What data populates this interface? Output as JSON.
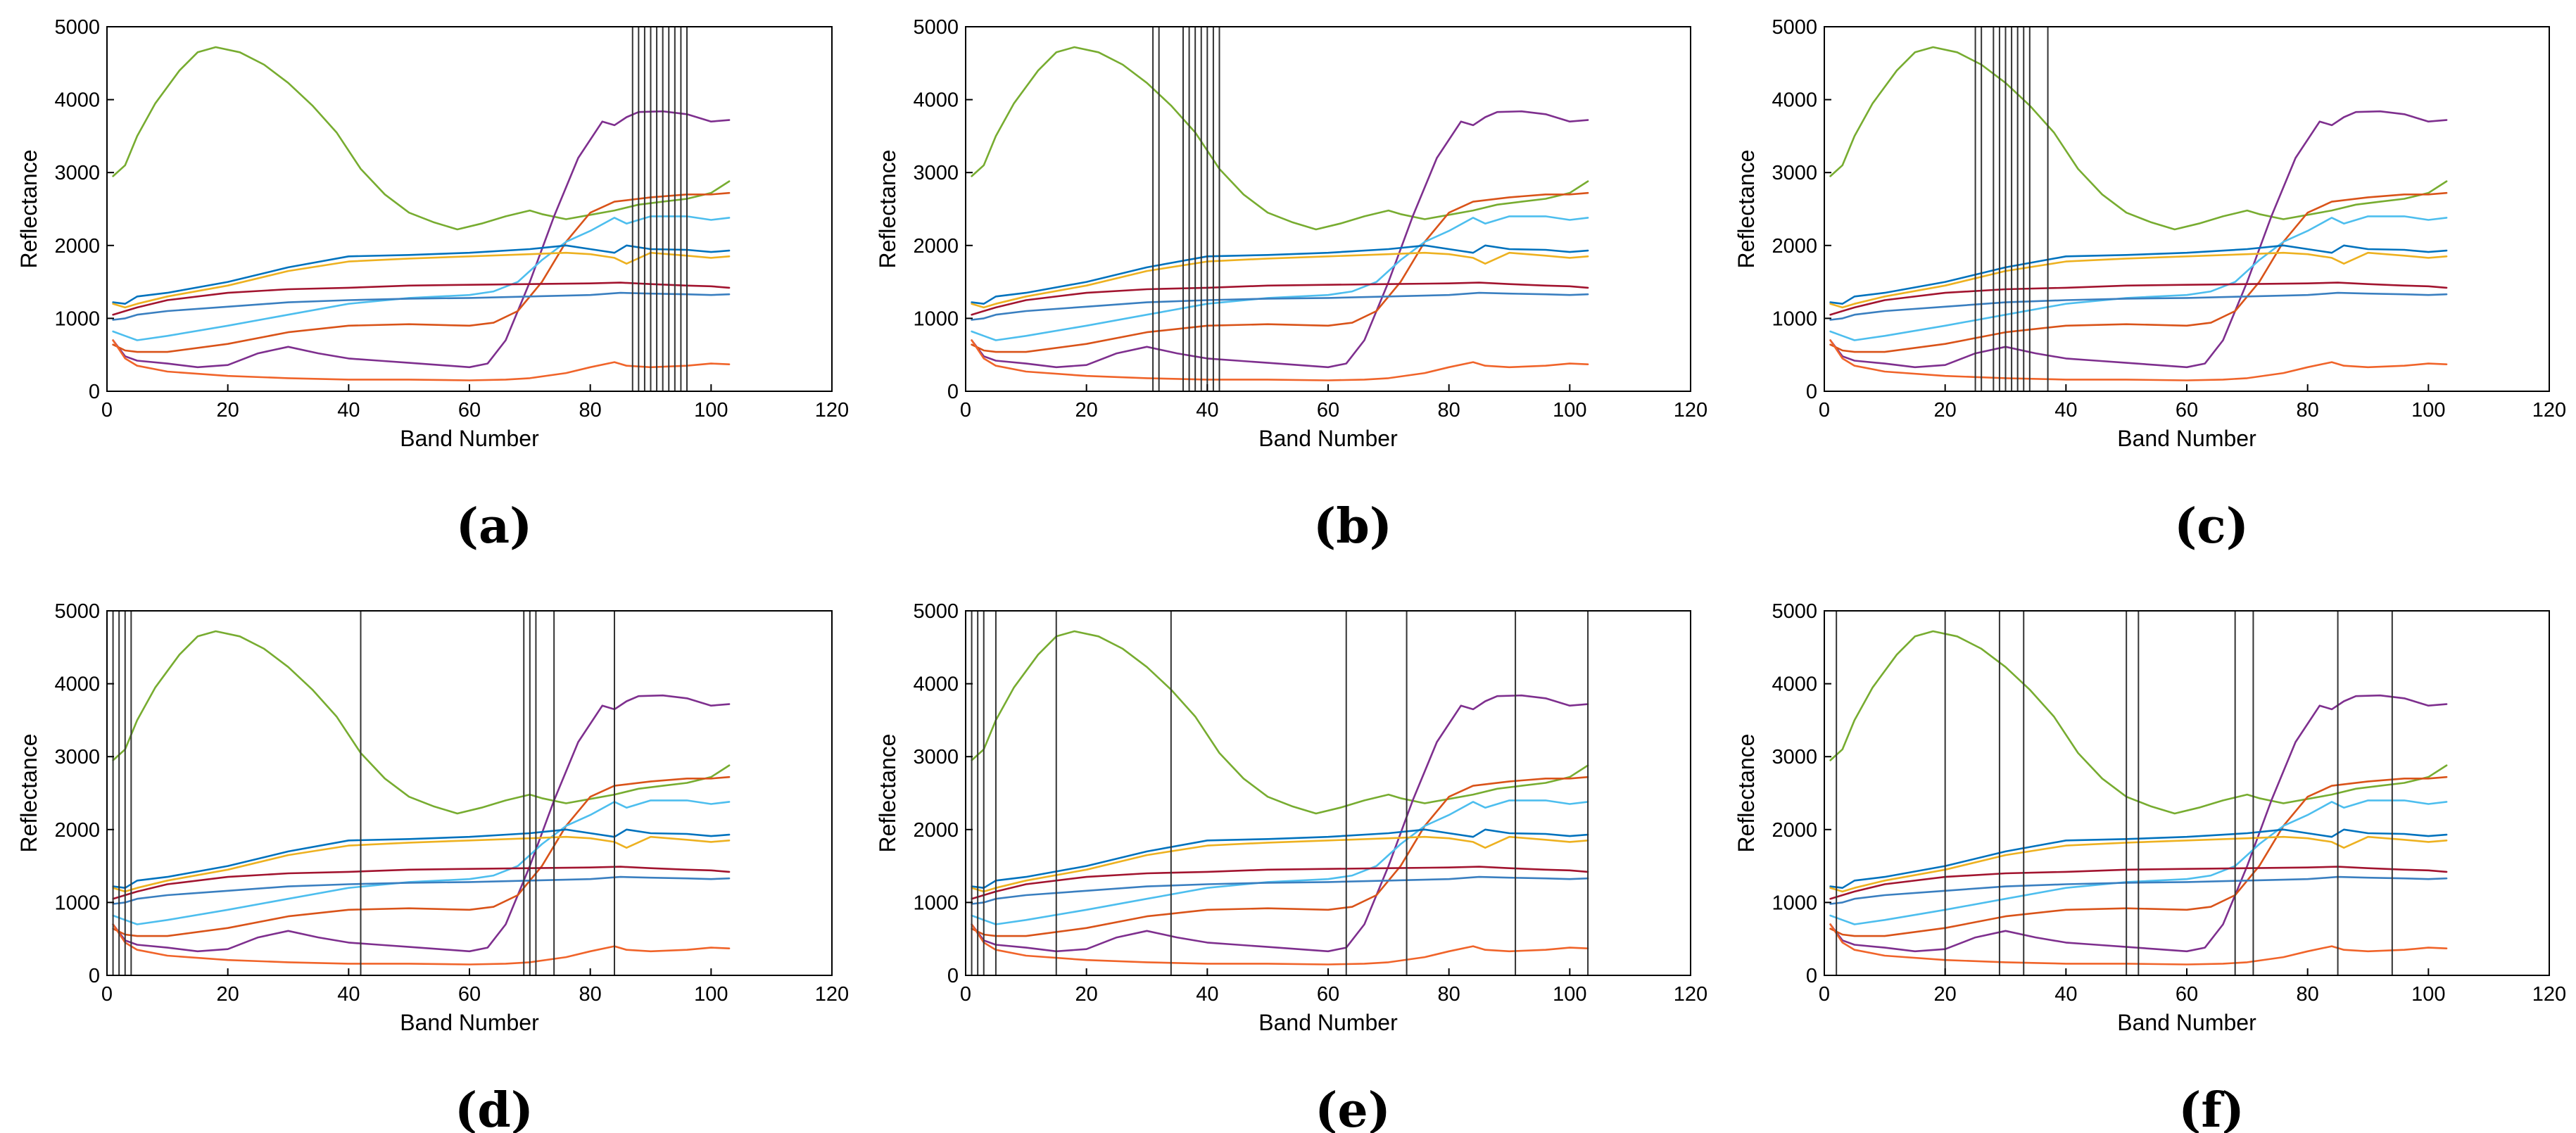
{
  "chart_data": {
    "type": "line",
    "xlabel": "Band Number",
    "ylabel": "Reflectance",
    "xlim": [
      0,
      120
    ],
    "ylim": [
      0,
      5000
    ],
    "xticks": [
      0,
      20,
      40,
      60,
      80,
      100,
      120
    ],
    "yticks": [
      0,
      1000,
      2000,
      3000,
      4000,
      5000
    ],
    "series": [
      {
        "name": "green",
        "color": "#77AC30",
        "x": [
          1,
          3,
          5,
          8,
          12,
          15,
          18,
          22,
          26,
          30,
          34,
          38,
          42,
          46,
          50,
          54,
          58,
          62,
          66,
          70,
          72,
          76,
          80,
          84,
          88,
          92,
          96,
          100,
          103
        ],
        "y": [
          2950,
          3100,
          3500,
          3950,
          4400,
          4650,
          4720,
          4650,
          4480,
          4230,
          3920,
          3550,
          3050,
          2700,
          2450,
          2320,
          2220,
          2300,
          2400,
          2480,
          2430,
          2360,
          2420,
          2480,
          2560,
          2600,
          2640,
          2720,
          2880
        ]
      },
      {
        "name": "purple",
        "color": "#7E2F8E",
        "x": [
          1,
          3,
          5,
          10,
          15,
          20,
          25,
          30,
          35,
          40,
          45,
          50,
          55,
          60,
          63,
          66,
          70,
          74,
          78,
          82,
          84,
          86,
          88,
          92,
          96,
          100,
          103
        ],
        "y": [
          700,
          480,
          420,
          380,
          330,
          360,
          520,
          610,
          520,
          450,
          420,
          390,
          360,
          330,
          380,
          700,
          1500,
          2400,
          3200,
          3700,
          3650,
          3760,
          3830,
          3840,
          3800,
          3700,
          3720
        ]
      },
      {
        "name": "orange-red",
        "color": "#D95319",
        "x": [
          1,
          3,
          5,
          10,
          20,
          30,
          40,
          50,
          60,
          64,
          68,
          72,
          76,
          80,
          84,
          90,
          96,
          100,
          103
        ],
        "y": [
          640,
          560,
          540,
          540,
          650,
          810,
          900,
          920,
          900,
          940,
          1100,
          1500,
          2050,
          2450,
          2600,
          2660,
          2700,
          2700,
          2720
        ]
      },
      {
        "name": "light-blue",
        "color": "#4DBEEE",
        "x": [
          1,
          3,
          5,
          10,
          20,
          30,
          40,
          50,
          60,
          64,
          68,
          72,
          76,
          80,
          84,
          86,
          90,
          96,
          100,
          103
        ],
        "y": [
          820,
          760,
          700,
          760,
          900,
          1050,
          1200,
          1280,
          1320,
          1370,
          1500,
          1800,
          2050,
          2200,
          2380,
          2300,
          2400,
          2400,
          2350,
          2380
        ]
      },
      {
        "name": "blue-dark",
        "color": "#0072BD",
        "x": [
          1,
          3,
          5,
          10,
          20,
          30,
          40,
          50,
          60,
          70,
          76,
          80,
          84,
          86,
          90,
          96,
          100,
          103
        ],
        "y": [
          1220,
          1200,
          1300,
          1350,
          1500,
          1700,
          1850,
          1870,
          1900,
          1950,
          2000,
          1950,
          1900,
          2000,
          1950,
          1940,
          1910,
          1930
        ]
      },
      {
        "name": "yellow",
        "color": "#EDB120",
        "x": [
          1,
          3,
          5,
          10,
          20,
          30,
          40,
          50,
          60,
          70,
          76,
          80,
          84,
          86,
          90,
          96,
          100,
          103
        ],
        "y": [
          1200,
          1150,
          1200,
          1300,
          1450,
          1650,
          1780,
          1820,
          1850,
          1880,
          1900,
          1880,
          1830,
          1750,
          1900,
          1860,
          1830,
          1850
        ]
      },
      {
        "name": "red",
        "color": "#A2142F",
        "x": [
          1,
          3,
          5,
          10,
          20,
          30,
          40,
          50,
          60,
          70,
          80,
          85,
          90,
          96,
          100,
          103
        ],
        "y": [
          1050,
          1100,
          1150,
          1250,
          1350,
          1400,
          1420,
          1450,
          1460,
          1470,
          1480,
          1490,
          1470,
          1450,
          1440,
          1420
        ]
      },
      {
        "name": "blue-mid",
        "color": "#3A7FC0",
        "x": [
          1,
          3,
          5,
          10,
          20,
          30,
          40,
          50,
          60,
          70,
          80,
          85,
          90,
          96,
          100,
          103
        ],
        "y": [
          980,
          1000,
          1050,
          1100,
          1160,
          1220,
          1250,
          1270,
          1280,
          1300,
          1320,
          1350,
          1340,
          1330,
          1320,
          1330
        ]
      },
      {
        "name": "orange-low",
        "color": "#F0642A",
        "x": [
          1,
          3,
          5,
          10,
          20,
          30,
          40,
          50,
          60,
          66,
          70,
          76,
          80,
          84,
          86,
          90,
          96,
          100,
          103
        ],
        "y": [
          700,
          450,
          350,
          270,
          210,
          180,
          160,
          160,
          150,
          160,
          180,
          250,
          330,
          400,
          350,
          330,
          350,
          380,
          370
        ]
      }
    ],
    "panels": [
      {
        "label": "(a)",
        "selected_bands": [
          87,
          88,
          89,
          90,
          91,
          92,
          93,
          94,
          95,
          96
        ]
      },
      {
        "label": "(b)",
        "selected_bands": [
          31,
          32,
          36,
          37,
          38,
          39,
          40,
          41,
          42
        ]
      },
      {
        "label": "(c)",
        "selected_bands": [
          25,
          26,
          28,
          29,
          30,
          31,
          32,
          33,
          34,
          37
        ]
      },
      {
        "label": "(d)",
        "selected_bands": [
          1,
          2,
          3,
          4,
          42,
          69,
          70,
          71,
          74,
          84
        ]
      },
      {
        "label": "(e)",
        "selected_bands": [
          1,
          2,
          3,
          5,
          15,
          34,
          63,
          73,
          91,
          103
        ]
      },
      {
        "label": "(f)",
        "selected_bands": [
          2,
          20,
          29,
          33,
          50,
          52,
          68,
          71,
          85,
          94
        ]
      }
    ]
  }
}
